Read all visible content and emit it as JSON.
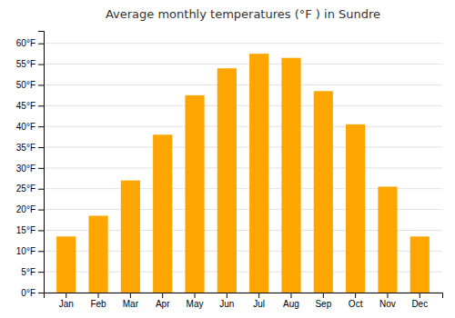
{
  "chart_data": {
    "type": "bar",
    "title": "Average monthly temperatures (°F ) in Sundre",
    "categories": [
      "Jan",
      "Feb",
      "Mar",
      "Apr",
      "May",
      "Jun",
      "Jul",
      "Aug",
      "Sep",
      "Oct",
      "Nov",
      "Dec"
    ],
    "values": [
      13.5,
      18.5,
      27.0,
      38.0,
      47.5,
      54.0,
      57.5,
      56.5,
      48.5,
      40.5,
      25.5,
      13.5
    ],
    "color": "#FFA500",
    "ylim": [
      0,
      63
    ],
    "yticks": [
      {
        "value": 0,
        "label": "0°F"
      },
      {
        "value": 5,
        "label": "5°F"
      },
      {
        "value": 10,
        "label": "10°F"
      },
      {
        "value": 15,
        "label": "15°F"
      },
      {
        "value": 20,
        "label": "20°F"
      },
      {
        "value": 25,
        "label": "25°F"
      },
      {
        "value": 30,
        "label": "30°F"
      },
      {
        "value": 35,
        "label": "35°F"
      },
      {
        "value": 40,
        "label": "40°F"
      },
      {
        "value": 45,
        "label": "45°F"
      },
      {
        "value": 50,
        "label": "50°F"
      },
      {
        "value": 55,
        "label": "55°F"
      },
      {
        "value": 60,
        "label": "60°F"
      }
    ],
    "grid": true
  }
}
